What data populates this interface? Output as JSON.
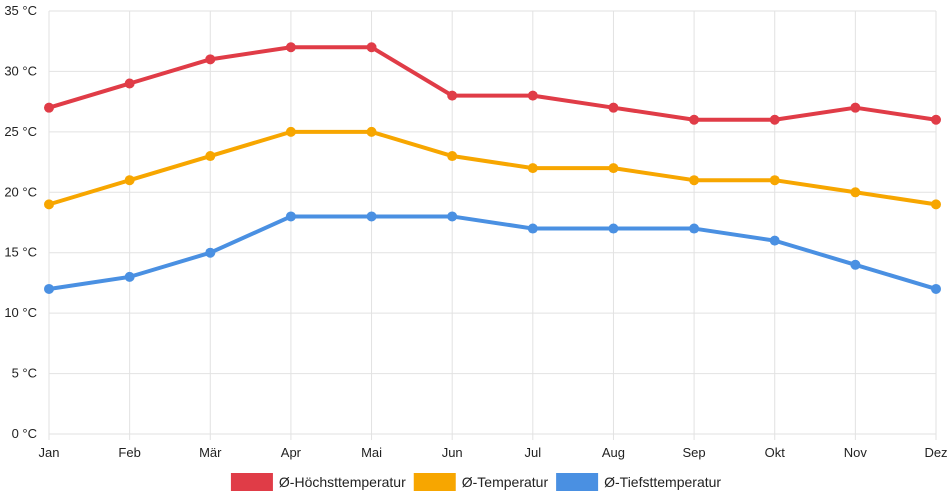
{
  "chart_data": {
    "type": "line",
    "categories": [
      "Jan",
      "Feb",
      "Mär",
      "Apr",
      "Mai",
      "Jun",
      "Jul",
      "Aug",
      "Sep",
      "Okt",
      "Nov",
      "Dez"
    ],
    "y_ticks": [
      "0 °C",
      "5 °C",
      "10 °C",
      "15 °C",
      "20 °C",
      "25 °C",
      "30 °C",
      "35 °C"
    ],
    "ylim": [
      0,
      35
    ],
    "grid": true,
    "legend_position": "bottom",
    "series": [
      {
        "name": "Ø-Höchsttemperatur",
        "color": "#e03c47",
        "values": [
          27,
          29,
          31,
          32,
          32,
          28,
          28,
          27,
          26,
          26,
          27,
          26
        ]
      },
      {
        "name": "Ø-Temperatur",
        "color": "#f7a600",
        "values": [
          19,
          21,
          23,
          25,
          25,
          23,
          22,
          22,
          21,
          21,
          20,
          19
        ]
      },
      {
        "name": "Ø-Tiefsttemperatur",
        "color": "#4a90e2",
        "values": [
          12,
          13,
          15,
          18,
          18,
          18,
          17,
          17,
          17,
          16,
          14,
          12
        ]
      }
    ]
  }
}
